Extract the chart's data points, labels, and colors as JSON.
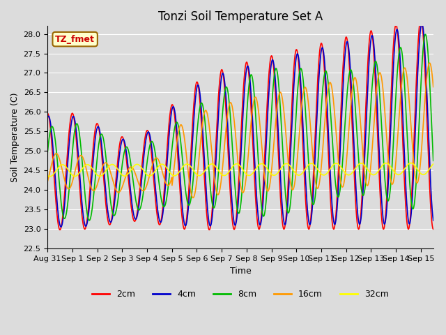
{
  "title": "Tonzi Soil Temperature Set A",
  "xlabel": "Time",
  "ylabel": "Soil Temperature (C)",
  "annotation": "TZ_fmet",
  "ylim": [
    22.5,
    28.2
  ],
  "background_color": "#dcdcdc",
  "plot_bg_color": "#dcdcdc",
  "line_colors": {
    "2cm": "#ff0000",
    "4cm": "#0000cc",
    "8cm": "#00bb00",
    "16cm": "#ff9900",
    "32cm": "#ffff00"
  },
  "line_width": 1.2,
  "tick_labels": [
    "Aug 31",
    "Sep 1",
    "Sep 2",
    "Sep 3",
    "Sep 4",
    "Sep 5",
    "Sep 6",
    "Sep 7",
    "Sep 8",
    "Sep 9",
    "Sep 10",
    "Sep 11",
    "Sep 12",
    "Sep 13",
    "Sep 14",
    "Sep 15"
  ],
  "yticks": [
    22.5,
    23.0,
    23.5,
    24.0,
    24.5,
    25.0,
    25.5,
    26.0,
    26.5,
    27.0,
    27.5,
    28.0
  ],
  "legend_labels": [
    "2cm",
    "4cm",
    "8cm",
    "16cm",
    "32cm"
  ],
  "title_fontsize": 12,
  "axis_fontsize": 9,
  "tick_fontsize": 8,
  "legend_fontsize": 9,
  "annotation_fontsize": 9,
  "annotation_bg": "#ffffcc",
  "annotation_border": "#996600",
  "annotation_text_color": "#cc0000"
}
